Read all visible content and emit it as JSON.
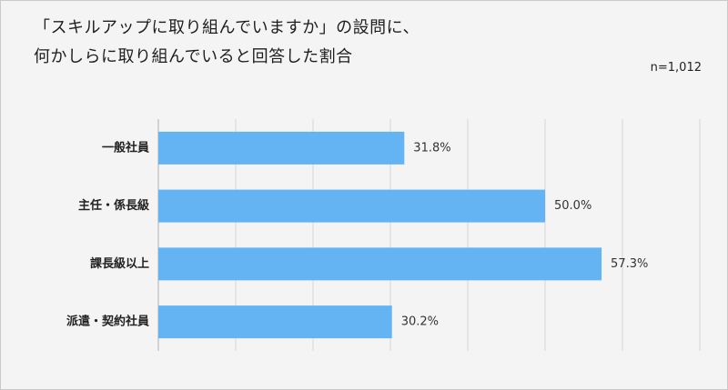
{
  "chart_data": {
    "type": "bar",
    "orientation": "horizontal",
    "title_lines": [
      "「スキルアップに取り組んでいますか」の設問に、",
      "何かしらに取り組んでいると回答した割合"
    ],
    "annotation": "n=1,012",
    "categories": [
      "一般社員",
      "主任・係長級",
      "課長級以上",
      "派遣・契約社員"
    ],
    "values": [
      31.8,
      50.0,
      57.3,
      30.2
    ],
    "value_labels": [
      "31.8%",
      "50.0%",
      "57.3%",
      "30.2%"
    ],
    "xlim": [
      0,
      70
    ],
    "grid_step": 10,
    "grid": true,
    "legend": "none",
    "bar_color": "#64b4f4",
    "grid_color": "#d6d6d6",
    "axis_color": "#b0b0b0"
  }
}
